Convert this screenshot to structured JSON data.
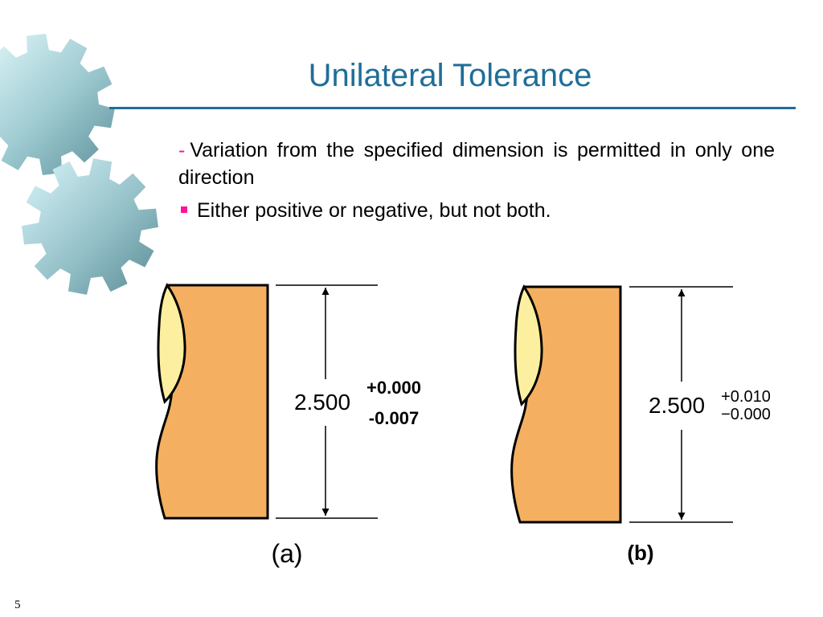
{
  "slide": {
    "title": "Unilateral Tolerance",
    "bullet1_marker": "-",
    "bullet1_text": "Variation from the specified dimension is permitted in only one direction",
    "bullet2_text": "Either positive or negative, but not both.",
    "page_number": "5"
  },
  "figure_a": {
    "dimension": "2.500",
    "upper_tol": "+0.000",
    "lower_tol": "-0.007",
    "caption": "(a)"
  },
  "figure_b": {
    "dimension": "2.500",
    "upper_tol": "+0.010",
    "lower_tol": "−0.000",
    "caption": "(b)"
  },
  "colors": {
    "title": "#1f6e98",
    "bullet_marker": "#ff1493",
    "part_body": "#f4b060",
    "part_end": "#fcf0a0",
    "gear": "#8fbfc8"
  },
  "icons": [
    "gear-icon"
  ]
}
